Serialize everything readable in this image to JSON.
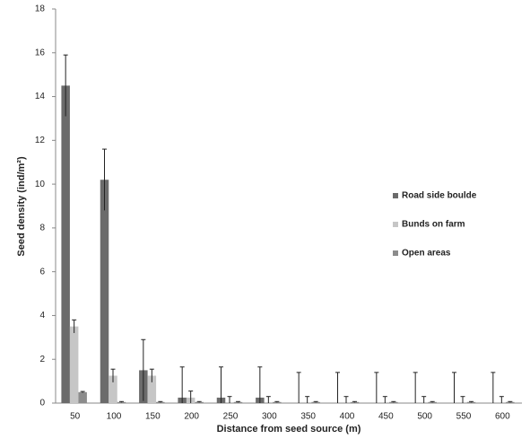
{
  "chart_data": {
    "type": "bar",
    "x_label": "Distance from seed source (m)",
    "y_label": "Seed density (ind/m²)",
    "categories": [
      "50",
      "100",
      "150",
      "200",
      "250",
      "300",
      "350",
      "400",
      "450",
      "500",
      "550",
      "600"
    ],
    "series": [
      {
        "name": "Road side boulde",
        "color": "#6b6b6b",
        "values": [
          14.5,
          10.2,
          1.5,
          0.25,
          0.25,
          0.25,
          0,
          0,
          0,
          0,
          0,
          0
        ],
        "errors": [
          1.4,
          1.4,
          1.4,
          1.4,
          1.4,
          1.4,
          1.4,
          1.4,
          1.4,
          1.4,
          1.4,
          1.4
        ]
      },
      {
        "name": "Bunds on farm",
        "color": "#c6c6c6",
        "values": [
          3.5,
          1.25,
          1.25,
          0.25,
          0,
          0,
          0,
          0,
          0,
          0,
          0,
          0
        ],
        "errors": [
          0.3,
          0.3,
          0.3,
          0.3,
          0.3,
          0.3,
          0.3,
          0.3,
          0.3,
          0.3,
          0.3,
          0.3
        ]
      },
      {
        "name": "Open areas",
        "color": "#8c8c8c",
        "values": [
          0.5,
          0.05,
          0.05,
          0.05,
          0.05,
          0.05,
          0.05,
          0.05,
          0.05,
          0.05,
          0.05,
          0.05
        ],
        "errors": [
          0.03,
          0.02,
          0.02,
          0.02,
          0.02,
          0.02,
          0.02,
          0.02,
          0.02,
          0.02,
          0.02,
          0.02
        ]
      }
    ],
    "ylim": [
      0,
      18
    ],
    "yticks": [
      0,
      2,
      4,
      6,
      8,
      10,
      12,
      14,
      16,
      18
    ],
    "legend": "right"
  }
}
